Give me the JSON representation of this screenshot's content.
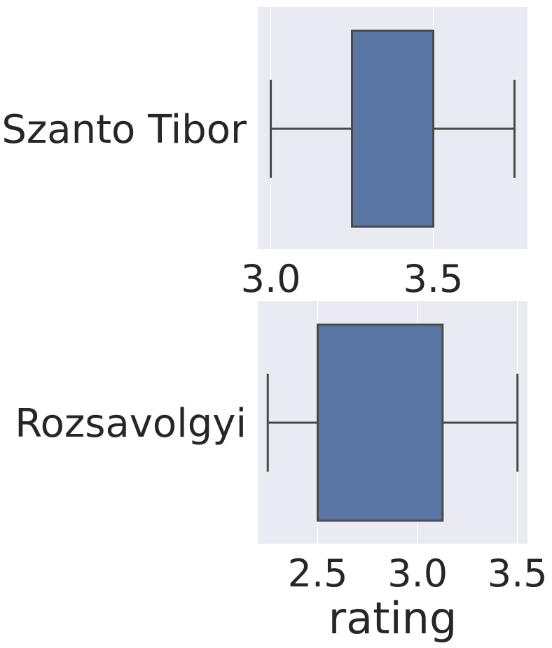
{
  "chart_data": [
    {
      "type": "box",
      "orientation": "horizontal",
      "category": "Szanto Tibor",
      "xlabel": "",
      "xlim": [
        2.96,
        3.79
      ],
      "xticks": [
        3.0,
        3.5
      ],
      "xtick_labels": [
        "3.0",
        "3.5"
      ],
      "stats": {
        "min": 3.0,
        "q1": 3.25,
        "median": 3.5,
        "q3": 3.5,
        "max": 3.75
      },
      "grid": true,
      "box_color": "#5975a4"
    },
    {
      "type": "box",
      "orientation": "horizontal",
      "category": "Rozsavolgyi",
      "xlabel": "rating",
      "xlim": [
        2.2,
        3.55
      ],
      "xticks": [
        2.5,
        3.0,
        3.5
      ],
      "xtick_labels": [
        "2.5",
        "3.0",
        "3.5"
      ],
      "stats": {
        "min": 2.25,
        "q1": 2.5,
        "median": 2.5,
        "q3": 3.125,
        "max": 3.5
      },
      "grid": true,
      "box_color": "#5975a4"
    }
  ],
  "colors": {
    "background": "#eaeaf2",
    "grid": "#ffffff",
    "line": "#4a4a4a",
    "text": "#262626"
  }
}
